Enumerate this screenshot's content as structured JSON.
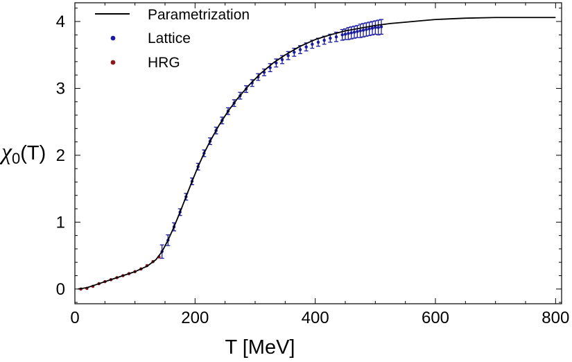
{
  "chart_data": {
    "type": "scatter",
    "title": "",
    "xlabel": "T [MeV]",
    "ylabel": "χ₀(T)",
    "ylabel_main": "χ",
    "ylabel_sub": "0",
    "ylabel_tail": "(T)",
    "xlim": [
      0,
      810
    ],
    "ylim": [
      -0.22,
      4.28
    ],
    "x_ticks": [
      0,
      200,
      400,
      600,
      800
    ],
    "x_tick_labels": [
      "0",
      "200",
      "400",
      "600",
      "800"
    ],
    "y_ticks": [
      0,
      1,
      2,
      3,
      4
    ],
    "y_tick_labels": [
      "0",
      "1",
      "2",
      "3",
      "4"
    ],
    "legend_position": "top-left",
    "legend": [
      {
        "label": "Parametrization",
        "marker": "line",
        "color": "#000000"
      },
      {
        "label": "Lattice",
        "marker": "dot",
        "color": "#1a1aa0"
      },
      {
        "label": "HRG",
        "marker": "dot",
        "color": "#8b1a1a"
      }
    ],
    "series": [
      {
        "name": "Parametrization",
        "kind": "line",
        "color": "#000000",
        "x": [
          5,
          20,
          40,
          60,
          80,
          100,
          120,
          135,
          145,
          155,
          165,
          175,
          185,
          195,
          205,
          215,
          225,
          240,
          255,
          270,
          290,
          310,
          330,
          350,
          375,
          400,
          425,
          450,
          475,
          500,
          525,
          550,
          575,
          600,
          650,
          700,
          750,
          800
        ],
        "y": [
          0.0,
          0.02,
          0.08,
          0.14,
          0.2,
          0.26,
          0.34,
          0.44,
          0.56,
          0.73,
          0.93,
          1.15,
          1.38,
          1.61,
          1.83,
          2.03,
          2.21,
          2.45,
          2.66,
          2.84,
          3.05,
          3.23,
          3.38,
          3.5,
          3.63,
          3.73,
          3.8,
          3.86,
          3.9,
          3.94,
          3.97,
          3.99,
          4.01,
          4.03,
          4.05,
          4.06,
          4.06,
          4.06
        ]
      },
      {
        "name": "HRG",
        "kind": "points",
        "color": "#8b1a1a",
        "x": [
          10,
          20,
          30,
          40,
          50,
          60,
          70,
          80,
          90,
          100,
          110,
          120,
          130,
          140
        ],
        "y": [
          0.0,
          0.01,
          0.04,
          0.08,
          0.11,
          0.14,
          0.17,
          0.2,
          0.23,
          0.26,
          0.3,
          0.35,
          0.41,
          0.48
        ]
      },
      {
        "name": "Lattice",
        "kind": "points_with_errors",
        "color": "#1a1aa0",
        "x": [
          145,
          155,
          165,
          175,
          185,
          195,
          205,
          215,
          225,
          235,
          245,
          255,
          265,
          275,
          285,
          295,
          305,
          315,
          325,
          335,
          345,
          355,
          365,
          375,
          385,
          395,
          405,
          415,
          425,
          435,
          445,
          450,
          455,
          460,
          465,
          470,
          475,
          480,
          485,
          490,
          495,
          500,
          505,
          510
        ],
        "y": [
          0.56,
          0.73,
          0.93,
          1.15,
          1.38,
          1.61,
          1.83,
          2.03,
          2.21,
          2.37,
          2.52,
          2.66,
          2.78,
          2.89,
          2.99,
          3.08,
          3.17,
          3.24,
          3.31,
          3.38,
          3.43,
          3.49,
          3.54,
          3.58,
          3.62,
          3.66,
          3.69,
          3.72,
          3.75,
          3.77,
          3.8,
          3.81,
          3.82,
          3.83,
          3.84,
          3.85,
          3.86,
          3.87,
          3.88,
          3.89,
          3.9,
          3.91,
          3.91,
          3.92
        ],
        "err": [
          0.1,
          0.08,
          0.06,
          0.05,
          0.05,
          0.05,
          0.05,
          0.05,
          0.05,
          0.05,
          0.05,
          0.05,
          0.05,
          0.05,
          0.05,
          0.05,
          0.05,
          0.05,
          0.06,
          0.06,
          0.06,
          0.06,
          0.06,
          0.06,
          0.06,
          0.06,
          0.06,
          0.06,
          0.06,
          0.07,
          0.08,
          0.08,
          0.09,
          0.09,
          0.09,
          0.09,
          0.1,
          0.1,
          0.1,
          0.1,
          0.1,
          0.1,
          0.11,
          0.11
        ]
      }
    ]
  }
}
